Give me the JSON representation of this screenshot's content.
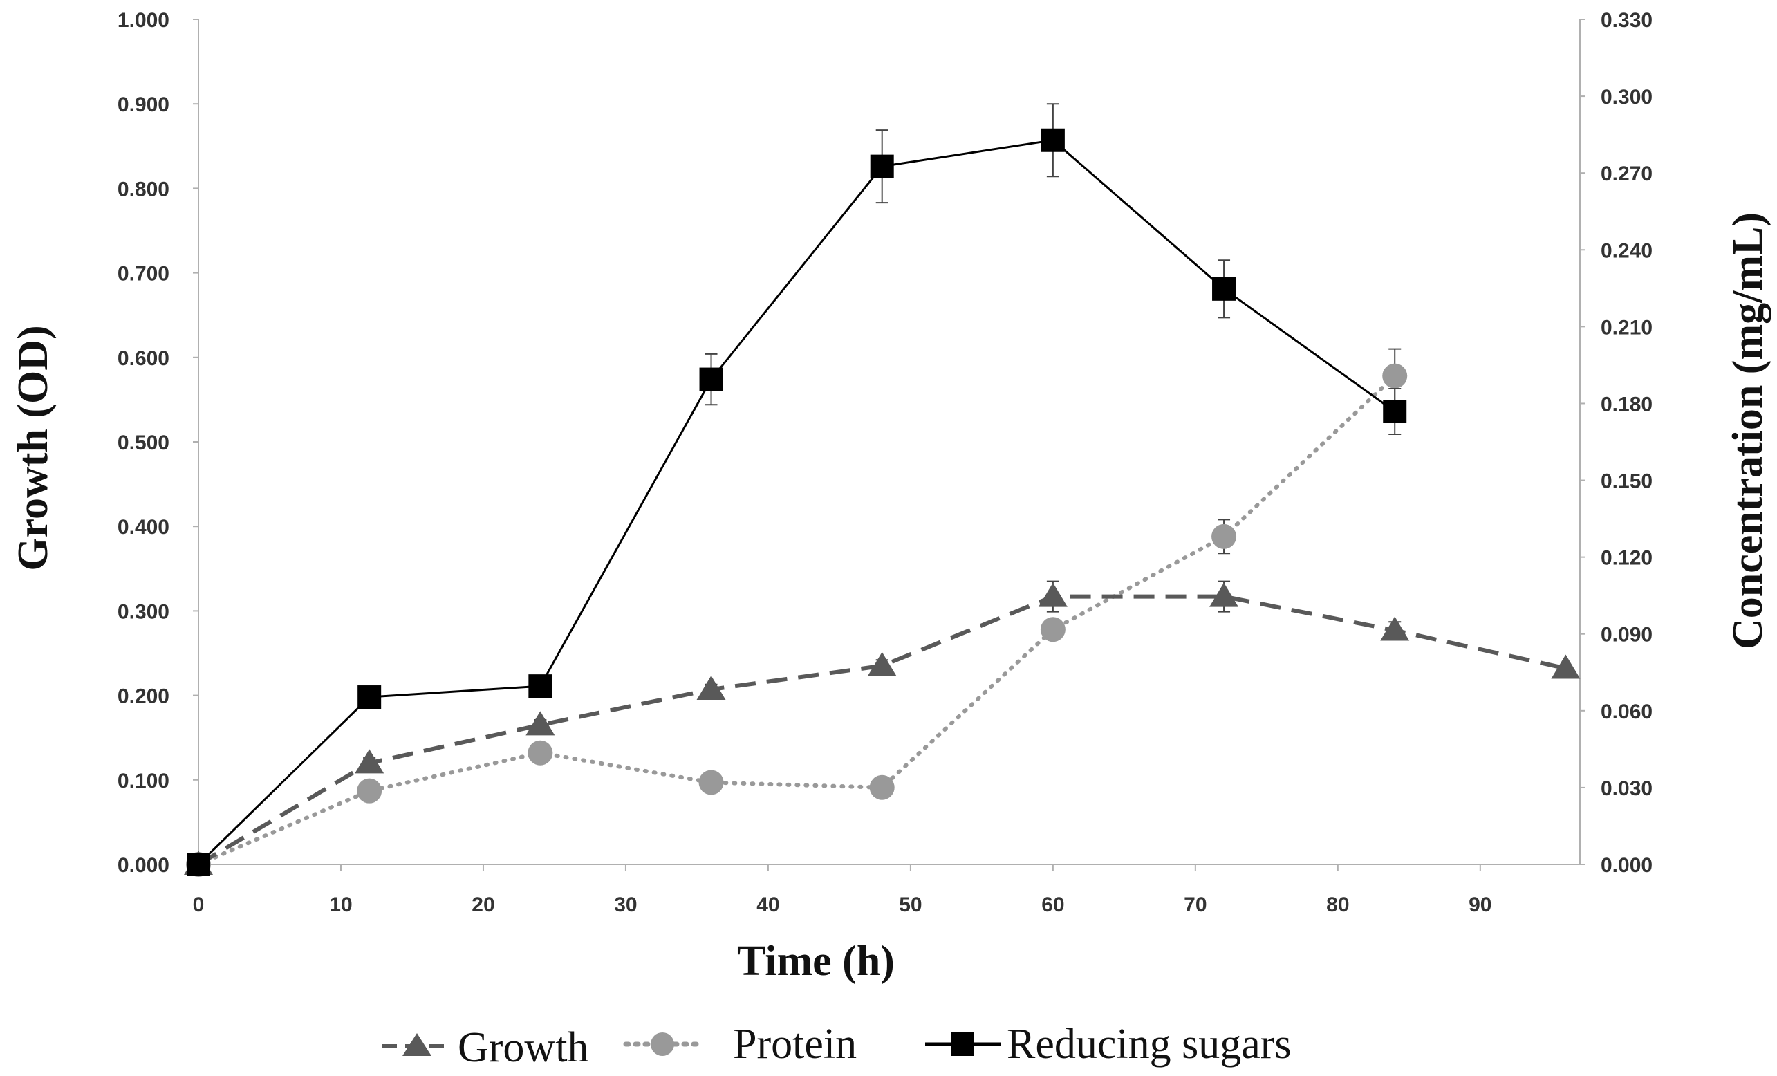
{
  "chart_data": {
    "type": "line",
    "title": "",
    "xlabel": "Time (h)",
    "ylabel_left": "Growth (OD)",
    "ylabel_right": "Concentration (mg/mL)",
    "xlim": [
      0,
      97
    ],
    "ylim_left": [
      0,
      1
    ],
    "ylim_right": [
      0,
      0.33
    ],
    "x_ticks": [
      "0",
      "10",
      "20",
      "30",
      "40",
      "50",
      "60",
      "70",
      "80",
      "90"
    ],
    "y_left_ticks": [
      "0.000",
      "0.100",
      "0.200",
      "0.300",
      "0.400",
      "0.500",
      "0.600",
      "0.700",
      "0.800",
      "0.900",
      "1.000"
    ],
    "y_right_ticks": [
      "0.000",
      "0.030",
      "0.060",
      "0.090",
      "0.120",
      "0.150",
      "0.180",
      "0.210",
      "0.240",
      "0.270",
      "0.300",
      "0.330"
    ],
    "series": [
      {
        "name": "Growth",
        "axis": "left",
        "color": "#595959",
        "marker": "triangle",
        "line": "dashed",
        "x": [
          0,
          12,
          24,
          36,
          48,
          60,
          72,
          84,
          96
        ],
        "values": [
          0.0,
          0.12,
          0.165,
          0.207,
          0.235,
          0.317,
          0.317,
          0.277,
          0.232
        ],
        "errors": [
          0,
          0.006,
          0.006,
          0.006,
          0.007,
          0.018,
          0.018,
          0.01,
          0
        ]
      },
      {
        "name": "Protein",
        "axis": "left",
        "color": "#999999",
        "marker": "circle",
        "line": "dotted",
        "x": [
          0,
          12,
          24,
          36,
          48,
          60,
          72,
          84
        ],
        "values": [
          0.0,
          0.087,
          0.132,
          0.097,
          0.091,
          0.278,
          0.388,
          0.578
        ],
        "errors": [
          0,
          0.005,
          0.005,
          0.004,
          0.004,
          0.01,
          0.02,
          0.032
        ]
      },
      {
        "name": "Reducing sugars",
        "axis": "left",
        "color": "#000000",
        "marker": "square",
        "line": "solid",
        "x": [
          0,
          12,
          24,
          36,
          48,
          60,
          72,
          84
        ],
        "values": [
          0.0,
          0.198,
          0.211,
          0.574,
          0.826,
          0.857,
          0.681,
          0.536
        ],
        "errors": [
          0,
          0.005,
          0.005,
          0.03,
          0.043,
          0.043,
          0.034,
          0.027
        ]
      }
    ],
    "legend_position": "bottom-center",
    "grid": false
  }
}
